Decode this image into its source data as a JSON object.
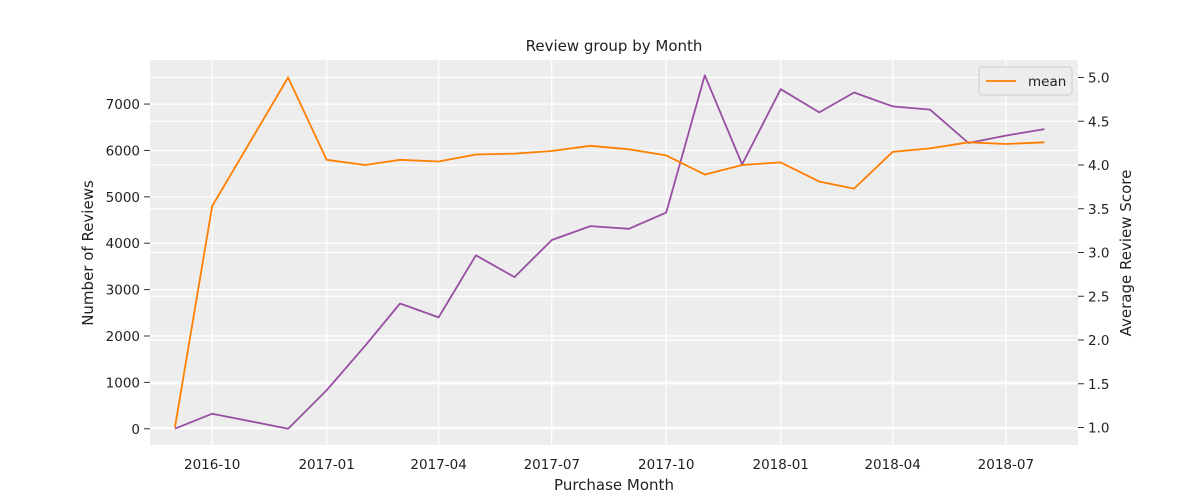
{
  "chart_data": {
    "type": "line",
    "title": "Review group by Month",
    "xlabel": "Purchase Month",
    "ylabel_left": "Number of Reviews",
    "ylabel_right": "Average Review Score",
    "x": [
      "2016-09",
      "2016-10",
      "2016-12",
      "2017-01",
      "2017-02",
      "2017-03",
      "2017-04",
      "2017-05",
      "2017-06",
      "2017-07",
      "2017-08",
      "2017-09",
      "2017-10",
      "2017-11",
      "2017-12",
      "2018-01",
      "2018-02",
      "2018-03",
      "2018-04",
      "2018-05",
      "2018-06",
      "2018-07",
      "2018-08"
    ],
    "x_ticks": [
      "2016-10",
      "2017-01",
      "2017-04",
      "2017-07",
      "2017-10",
      "2018-01",
      "2018-04",
      "2018-07"
    ],
    "x_range": [
      "2016-08-12",
      "2018-08-28"
    ],
    "y_left_ticks": [
      0,
      1000,
      2000,
      3000,
      4000,
      5000,
      6000,
      7000
    ],
    "y_left_range": [
      -350,
      7950
    ],
    "y_right_ticks": [
      1.0,
      1.5,
      2.0,
      2.5,
      3.0,
      3.5,
      4.0,
      4.5,
      5.0
    ],
    "y_right_range": [
      0.8,
      5.2
    ],
    "series": [
      {
        "axis": "left",
        "color": "#984ea3",
        "values": [
          1,
          325,
          1,
          830,
          1790,
          2700,
          2400,
          3740,
          3270,
          4070,
          4370,
          4310,
          4660,
          7620,
          5700,
          7320,
          6820,
          7250,
          6950,
          6880,
          6160,
          6320,
          6460
        ]
      },
      {
        "name": "mean",
        "axis": "right",
        "color": "#ff7f00",
        "values": [
          1.0,
          3.53,
          5.0,
          4.06,
          4.0,
          4.06,
          4.04,
          4.12,
          4.13,
          4.16,
          4.22,
          4.18,
          4.11,
          3.89,
          4.0,
          4.03,
          3.81,
          3.73,
          4.15,
          4.19,
          4.26,
          4.24,
          4.26
        ]
      }
    ],
    "legend": {
      "position": "top-right",
      "entries": [
        "mean"
      ]
    },
    "grid": true
  }
}
